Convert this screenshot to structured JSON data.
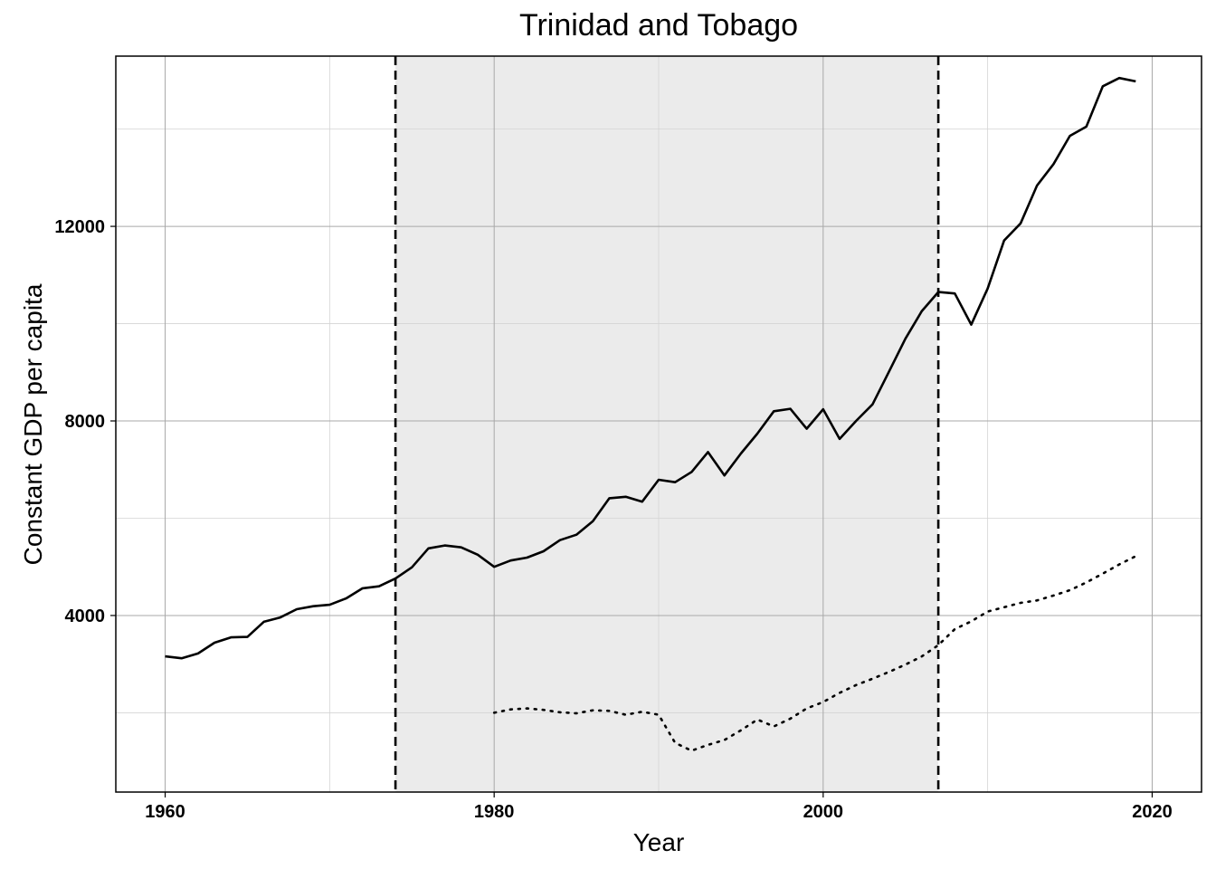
{
  "chart_data": {
    "type": "line",
    "title": "Trinidad and Tobago",
    "xlabel": "Year",
    "ylabel": "Constant GDP per capita",
    "xlim": [
      1957,
      2023
    ],
    "ylim": [
      370,
      15500
    ],
    "x_ticks": [
      1960,
      1980,
      2000,
      2020
    ],
    "y_ticks": [
      4000,
      8000,
      12000
    ],
    "x_minor_grid": [
      1970,
      1990,
      2010
    ],
    "y_minor_grid": [
      2000,
      6000,
      10000,
      14000
    ],
    "grid": true,
    "shaded_region": {
      "x_start": 1974,
      "x_end": 2007,
      "color": "#ebebeb"
    },
    "vlines": [
      1974,
      2007
    ],
    "series": [
      {
        "style": "solid",
        "x": [
          1960,
          1961,
          1962,
          1963,
          1964,
          1965,
          1966,
          1967,
          1968,
          1969,
          1970,
          1971,
          1972,
          1973,
          1974,
          1975,
          1976,
          1977,
          1978,
          1979,
          1980,
          1981,
          1982,
          1983,
          1984,
          1985,
          1986,
          1987,
          1988,
          1989,
          1990,
          1991,
          1992,
          1993,
          1994,
          1995,
          1996,
          1997,
          1998,
          1999,
          2000,
          2001,
          2002,
          2003,
          2004,
          2005,
          2006,
          2007,
          2008,
          2009,
          2010,
          2011,
          2012,
          2013,
          2014,
          2015,
          2016,
          2017,
          2018,
          2019
        ],
        "values": [
          3160,
          3120,
          3220,
          3440,
          3550,
          3560,
          3870,
          3960,
          4130,
          4190,
          4220,
          4350,
          4560,
          4600,
          4760,
          4990,
          5380,
          5440,
          5400,
          5250,
          5000,
          5130,
          5190,
          5320,
          5550,
          5660,
          5940,
          6410,
          6440,
          6340,
          6790,
          6740,
          6950,
          7360,
          6880,
          7330,
          7740,
          8200,
          8250,
          7840,
          8240,
          7630,
          8000,
          8340,
          9010,
          9690,
          10260,
          10650,
          10620,
          9980,
          10720,
          11710,
          12060,
          12840,
          13280,
          13860,
          14050,
          14880,
          15050,
          14980
        ]
      },
      {
        "style": "dotted",
        "x": [
          1980,
          1981,
          1982,
          1983,
          1984,
          1985,
          1986,
          1987,
          1988,
          1989,
          1990,
          1991,
          1992,
          1993,
          1994,
          1995,
          1996,
          1997,
          1998,
          1999,
          2000,
          2001,
          2002,
          2003,
          2004,
          2005,
          2006,
          2007,
          2008,
          2009,
          2010,
          2011,
          2012,
          2013,
          2014,
          2015,
          2016,
          2017,
          2018,
          2019
        ],
        "values": [
          2000,
          2070,
          2090,
          2060,
          2010,
          1990,
          2050,
          2040,
          1960,
          2020,
          1960,
          1380,
          1220,
          1340,
          1440,
          1640,
          1860,
          1720,
          1880,
          2090,
          2220,
          2410,
          2570,
          2700,
          2840,
          2990,
          3160,
          3390,
          3720,
          3880,
          4080,
          4170,
          4260,
          4310,
          4410,
          4520,
          4680,
          4860,
          5050,
          5220
        ]
      }
    ]
  }
}
